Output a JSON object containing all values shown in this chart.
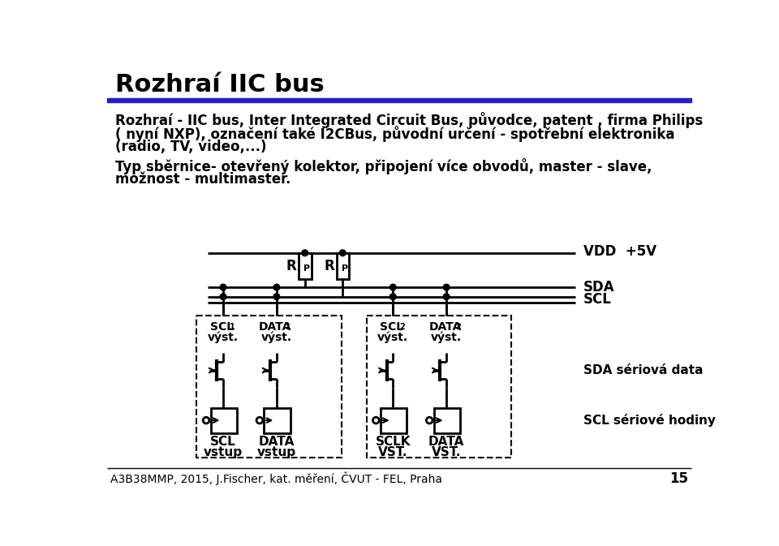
{
  "title": "Rozhraí IIC bus",
  "body_lines": [
    "Rozhraí - IIC bus, Inter Integrated Circuit Bus, původce, patent , firma Philips",
    "( nyní NXP), označení také I2CBus, původní určení - spotřební elektronika",
    "(radio, TV, video,...)",
    "Typ sběrnice- otevřený kolektor, připojení více obvodů, master - slave,",
    "možnost - multimaster."
  ],
  "footer": "A3B38MMP, 2015, J.Fischer, kat. měření, ČVUT - FEL, Praha",
  "page_num": "15",
  "bg_color": "#ffffff",
  "text_color": "#000000",
  "blue_color": "#2222bb"
}
